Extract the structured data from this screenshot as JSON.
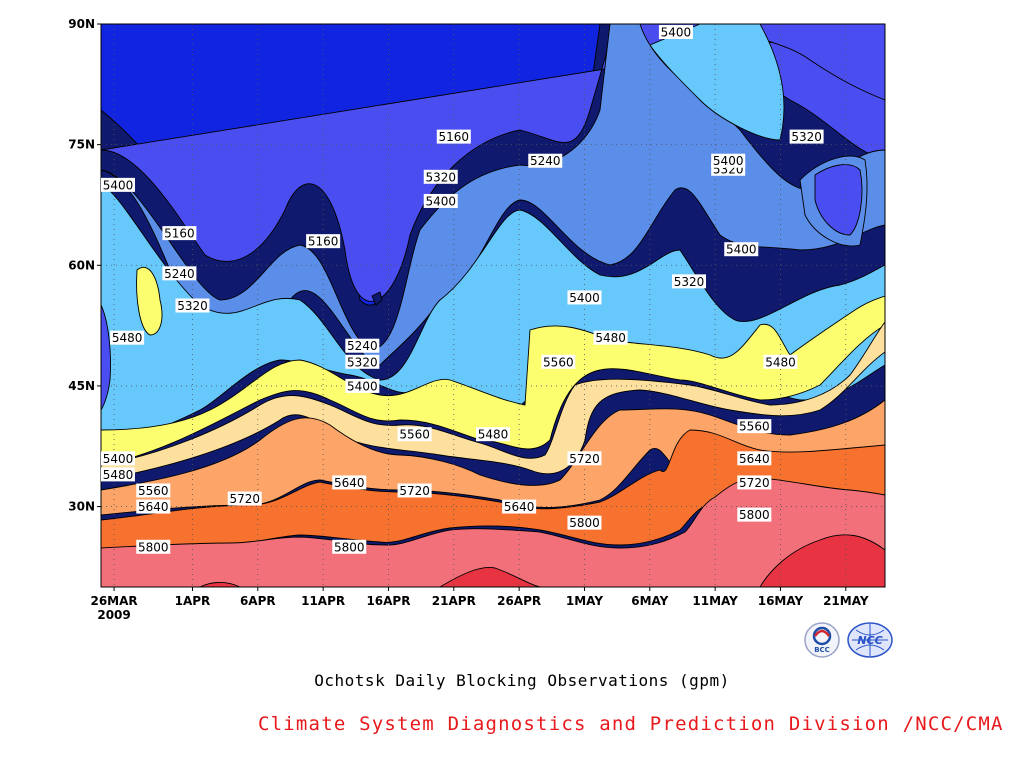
{
  "title": "Ochotsk Daily Blocking Observations (gpm)",
  "credit": "Climate System Diagnostics and Prediction Division /NCC/CMA",
  "logos": [
    {
      "name": "bcc-logo",
      "text": "BCC",
      "color": "#1f4ea8"
    },
    {
      "name": "ncc-logo",
      "text": "NCC",
      "color": "#2a52c8"
    }
  ],
  "chart_data": {
    "type": "contour",
    "y_axis": {
      "ticks": [
        "30N",
        "45N",
        "60N",
        "75N",
        "90N"
      ],
      "values": [
        30,
        45,
        60,
        75,
        90
      ],
      "range": [
        20,
        90
      ]
    },
    "x_axis": {
      "ticks": [
        "26MAR",
        "1APR",
        "6APR",
        "11APR",
        "16APR",
        "21APR",
        "26APR",
        "1MAY",
        "6MAY",
        "11MAY",
        "16MAY",
        "21MAY"
      ],
      "sub_label": "2009",
      "range": [
        "2009-03-25",
        "2009-05-24"
      ]
    },
    "grid": "dotted",
    "levels": [
      5160,
      5240,
      5320,
      5400,
      5480,
      5560,
      5640,
      5720,
      5800
    ],
    "level_colors": [
      "#0f1a6e",
      "#1125e0",
      "#4a4ef0",
      "#5b8ee8",
      "#66c8fb",
      "#fdfd70",
      "#fde09e",
      "#fda469",
      "#f8722f",
      "#f2707a",
      "#e83442"
    ],
    "contour_labels": [
      {
        "text": "5400",
        "date": "2009-05-08",
        "lat": 89
      },
      {
        "text": "5320",
        "date": "2009-05-12",
        "lat": 72
      },
      {
        "text": "5320",
        "date": "2009-05-18",
        "lat": 76
      },
      {
        "text": "5400",
        "date": "2009-05-12",
        "lat": 73
      },
      {
        "text": "5160",
        "date": "2009-04-21",
        "lat": 76
      },
      {
        "text": "5240",
        "date": "2009-04-28",
        "lat": 73
      },
      {
        "text": "5320",
        "date": "2009-04-20",
        "lat": 71
      },
      {
        "text": "5400",
        "date": "2009-04-20",
        "lat": 68
      },
      {
        "text": "5400",
        "date": "2009-03-25",
        "lat": 70
      },
      {
        "text": "5160",
        "date": "2009-03-31",
        "lat": 64
      },
      {
        "text": "5160",
        "date": "2009-04-11",
        "lat": 63
      },
      {
        "text": "5240",
        "date": "2009-03-31",
        "lat": 59
      },
      {
        "text": "5320",
        "date": "2009-04-01",
        "lat": 55
      },
      {
        "text": "5480",
        "date": "2009-03-27",
        "lat": 51
      },
      {
        "text": "5240",
        "date": "2009-04-14",
        "lat": 50
      },
      {
        "text": "5320",
        "date": "2009-04-14",
        "lat": 48
      },
      {
        "text": "5400",
        "date": "2009-04-14",
        "lat": 45
      },
      {
        "text": "5400",
        "date": "2009-05-01",
        "lat": 56
      },
      {
        "text": "5480",
        "date": "2009-05-03",
        "lat": 51
      },
      {
        "text": "5560",
        "date": "2009-04-29",
        "lat": 48
      },
      {
        "text": "5320",
        "date": "2009-05-09",
        "lat": 58
      },
      {
        "text": "5400",
        "date": "2009-05-13",
        "lat": 62
      },
      {
        "text": "5480",
        "date": "2009-05-16",
        "lat": 48
      },
      {
        "text": "5560",
        "date": "2009-05-14",
        "lat": 40
      },
      {
        "text": "5640",
        "date": "2009-05-14",
        "lat": 36
      },
      {
        "text": "5720",
        "date": "2009-05-14",
        "lat": 33
      },
      {
        "text": "5800",
        "date": "2009-05-14",
        "lat": 29
      },
      {
        "text": "5560",
        "date": "2009-04-18",
        "lat": 39
      },
      {
        "text": "5480",
        "date": "2009-04-24",
        "lat": 39
      },
      {
        "text": "5640",
        "date": "2009-04-26",
        "lat": 30
      },
      {
        "text": "5720",
        "date": "2009-05-01",
        "lat": 36
      },
      {
        "text": "5800",
        "date": "2009-05-01",
        "lat": 28
      },
      {
        "text": "5640",
        "date": "2009-04-13",
        "lat": 33
      },
      {
        "text": "5720",
        "date": "2009-04-18",
        "lat": 32
      },
      {
        "text": "5720",
        "date": "2009-04-05",
        "lat": 31
      },
      {
        "text": "5800",
        "date": "2009-04-13",
        "lat": 25
      },
      {
        "text": "5800",
        "date": "2009-03-29",
        "lat": 25
      },
      {
        "text": "5400",
        "date": "2009-03-25",
        "lat": 36
      },
      {
        "text": "5480",
        "date": "2009-03-25",
        "lat": 34
      },
      {
        "text": "5560",
        "date": "2009-03-29",
        "lat": 32
      },
      {
        "text": "5640",
        "date": "2009-03-29",
        "lat": 30
      }
    ]
  }
}
